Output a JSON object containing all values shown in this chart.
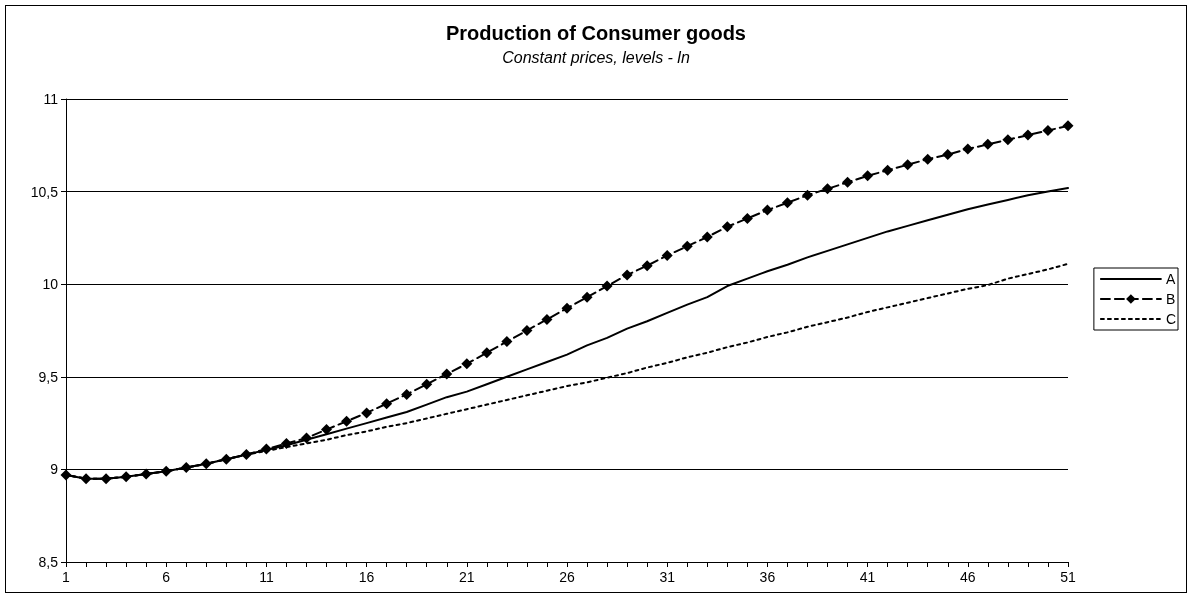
{
  "chart_data": {
    "type": "line",
    "title": "Production of Consumer goods",
    "subtitle": "Constant prices, levels - ln",
    "x": [
      1,
      2,
      3,
      4,
      5,
      6,
      7,
      8,
      9,
      10,
      11,
      12,
      13,
      14,
      15,
      16,
      17,
      18,
      19,
      20,
      21,
      22,
      23,
      24,
      25,
      26,
      27,
      28,
      29,
      30,
      31,
      32,
      33,
      34,
      35,
      36,
      37,
      38,
      39,
      40,
      41,
      42,
      43,
      44,
      45,
      46,
      47,
      48,
      49,
      50,
      51
    ],
    "series": [
      {
        "name": "A",
        "color": "#000000",
        "line_style": "solid",
        "marker": "none",
        "values": [
          8.97,
          8.95,
          8.95,
          8.96,
          8.975,
          8.99,
          9.01,
          9.03,
          9.055,
          9.08,
          9.105,
          9.13,
          9.16,
          9.19,
          9.22,
          9.25,
          9.28,
          9.31,
          9.35,
          9.39,
          9.42,
          9.46,
          9.5,
          9.54,
          9.58,
          9.62,
          9.67,
          9.71,
          9.76,
          9.8,
          9.845,
          9.89,
          9.93,
          9.99,
          10.03,
          10.07,
          10.105,
          10.145,
          10.18,
          10.215,
          10.25,
          10.285,
          10.315,
          10.345,
          10.375,
          10.405,
          10.43,
          10.455,
          10.48,
          10.5,
          10.52
        ]
      },
      {
        "name": "B",
        "color": "#000000",
        "line_style": "dashed",
        "marker": "diamond",
        "values": [
          8.97,
          8.95,
          8.95,
          8.96,
          8.975,
          8.99,
          9.01,
          9.03,
          9.055,
          9.08,
          9.11,
          9.14,
          9.17,
          9.215,
          9.26,
          9.305,
          9.355,
          9.405,
          9.46,
          9.515,
          9.57,
          9.63,
          9.69,
          9.75,
          9.81,
          9.87,
          9.93,
          9.99,
          10.05,
          10.1,
          10.155,
          10.205,
          10.255,
          10.31,
          10.355,
          10.4,
          10.44,
          10.48,
          10.515,
          10.55,
          10.585,
          10.615,
          10.645,
          10.675,
          10.7,
          10.73,
          10.755,
          10.78,
          10.805,
          10.83,
          10.855
        ]
      },
      {
        "name": "C",
        "color": "#000000",
        "line_style": "dotted",
        "marker": "none",
        "values": [
          8.97,
          8.95,
          8.95,
          8.96,
          8.975,
          8.99,
          9.01,
          9.03,
          9.055,
          9.08,
          9.1,
          9.12,
          9.14,
          9.16,
          9.185,
          9.205,
          9.23,
          9.25,
          9.275,
          9.3,
          9.325,
          9.35,
          9.375,
          9.4,
          9.425,
          9.45,
          9.47,
          9.495,
          9.52,
          9.55,
          9.575,
          9.605,
          9.63,
          9.66,
          9.685,
          9.715,
          9.74,
          9.77,
          9.795,
          9.82,
          9.85,
          9.875,
          9.9,
          9.925,
          9.95,
          9.975,
          9.995,
          10.03,
          10.055,
          10.08,
          10.11
        ]
      }
    ],
    "xlim": [
      1,
      51
    ],
    "xticks": [
      1,
      {
        "value": 2,
        "label": null
      },
      {
        "value": 3,
        "label": null
      },
      {
        "value": 4,
        "label": null
      },
      {
        "value": 5,
        "label": null
      },
      6,
      {
        "value": 7,
        "label": null
      },
      {
        "value": 8,
        "label": null
      },
      {
        "value": 9,
        "label": null
      },
      {
        "value": 10,
        "label": null
      },
      11,
      {
        "value": 12,
        "label": null
      },
      {
        "value": 13,
        "label": null
      },
      {
        "value": 14,
        "label": null
      },
      {
        "value": 15,
        "label": null
      },
      16,
      {
        "value": 17,
        "label": null
      },
      {
        "value": 18,
        "label": null
      },
      {
        "value": 19,
        "label": null
      },
      {
        "value": 20,
        "label": null
      },
      21,
      {
        "value": 22,
        "label": null
      },
      {
        "value": 23,
        "label": null
      },
      {
        "value": 24,
        "label": null
      },
      {
        "value": 25,
        "label": null
      },
      26,
      {
        "value": 27,
        "label": null
      },
      {
        "value": 28,
        "label": null
      },
      {
        "value": 29,
        "label": null
      },
      {
        "value": 30,
        "label": null
      },
      31,
      {
        "value": 32,
        "label": null
      },
      {
        "value": 33,
        "label": null
      },
      {
        "value": 34,
        "label": null
      },
      {
        "value": 35,
        "label": null
      },
      36,
      {
        "value": 37,
        "label": null
      },
      {
        "value": 38,
        "label": null
      },
      {
        "value": 39,
        "label": null
      },
      {
        "value": 40,
        "label": null
      },
      41,
      {
        "value": 42,
        "label": null
      },
      {
        "value": 43,
        "label": null
      },
      {
        "value": 44,
        "label": null
      },
      {
        "value": 45,
        "label": null
      },
      46,
      {
        "value": 47,
        "label": null
      },
      {
        "value": 48,
        "label": null
      },
      {
        "value": 49,
        "label": null
      },
      {
        "value": 50,
        "label": null
      },
      51
    ],
    "ylim": [
      8.5,
      11
    ],
    "yticks": [
      {
        "value": 8.5,
        "label": "8,5"
      },
      9,
      {
        "value": 9.5,
        "label": "9,5"
      },
      10,
      {
        "value": 10.5,
        "label": "10,5"
      },
      11
    ],
    "grid": "y",
    "legend": "right"
  }
}
